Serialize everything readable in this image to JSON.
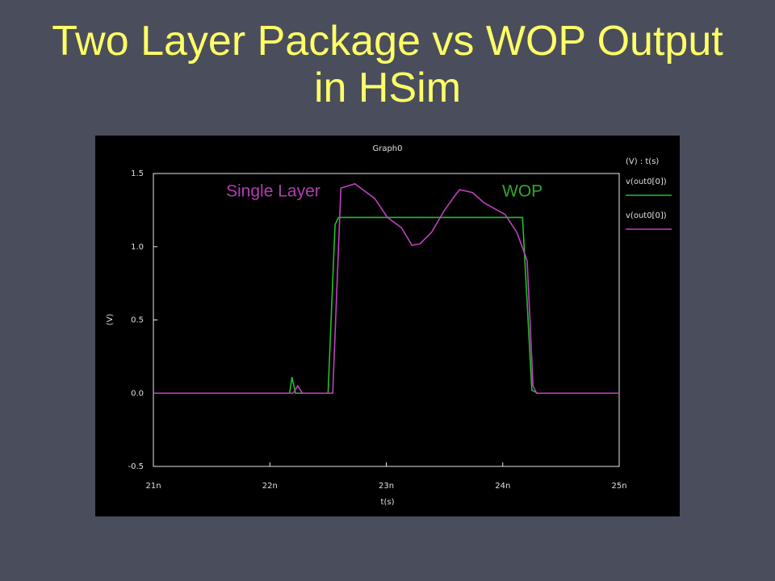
{
  "chart_data": {
    "type": "line",
    "title": "Two Layer Package vs WOP Output in HSim",
    "graph_title": "Graph0",
    "x_label": "t(s)",
    "y_label": "(V)",
    "legend_title": "(V) : t(s)",
    "annotations": [
      {
        "text": "Single Layer",
        "color": "#b23db2"
      },
      {
        "text": "WOP",
        "color": "#2ea82e"
      }
    ],
    "xlim": [
      21,
      25
    ],
    "xticks": [
      {
        "value": 21,
        "label": "21n"
      },
      {
        "value": 22,
        "label": "22n"
      },
      {
        "value": 23,
        "label": "23n"
      },
      {
        "value": 24,
        "label": "24n"
      },
      {
        "value": 25,
        "label": "25n"
      }
    ],
    "ylim": [
      -0.5,
      1.5
    ],
    "yticks": [
      1.5,
      {
        "value": 1.0,
        "label": "1.0"
      },
      0.5,
      {
        "value": 0.0,
        "label": "0.0"
      },
      -0.5
    ],
    "series": [
      {
        "name": "v(out0[0])",
        "color": "#22c02a",
        "x": [
          21,
          22.17,
          22.19,
          22.22,
          22.5,
          22.56,
          22.59,
          24.17,
          24.25,
          24.3,
          25
        ],
        "values": [
          0,
          0,
          0.11,
          0,
          0,
          1.15,
          1.2,
          1.2,
          0.02,
          0,
          0
        ]
      },
      {
        "name": "v(out0[0])",
        "color": "#c040c0",
        "x": [
          21,
          22.2,
          22.24,
          22.28,
          22.54,
          22.61,
          22.73,
          22.9,
          23.01,
          23.13,
          23.22,
          23.29,
          23.39,
          23.5,
          23.6,
          23.63,
          23.74,
          23.84,
          24.02,
          24.12,
          24.19,
          24.21,
          24.26,
          24.29,
          25
        ],
        "values": [
          0,
          0,
          0.05,
          0,
          0,
          1.4,
          1.43,
          1.33,
          1.2,
          1.13,
          1.01,
          1.02,
          1.1,
          1.25,
          1.36,
          1.39,
          1.37,
          1.3,
          1.22,
          1.1,
          0.95,
          0.9,
          0.05,
          0,
          0
        ]
      }
    ]
  }
}
